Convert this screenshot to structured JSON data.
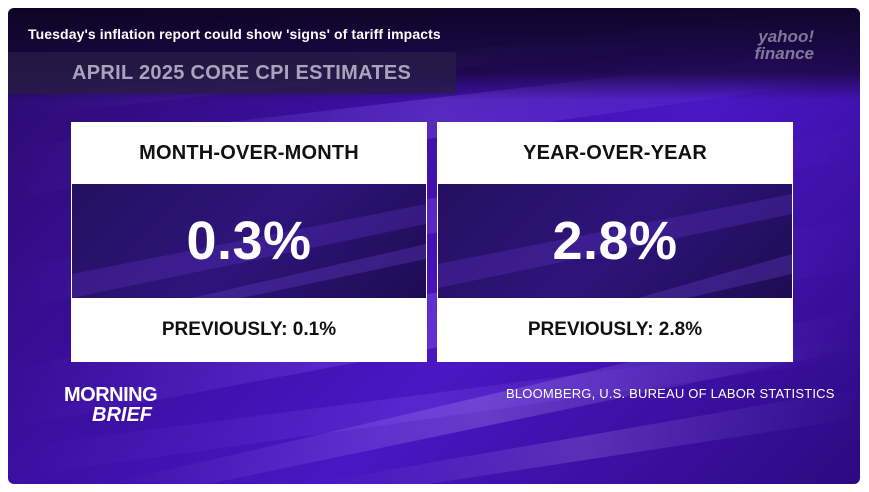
{
  "headline": "Tuesday's inflation report could show 'signs' of tariff impacts",
  "subtitle": "APRIL 2025 CORE CPI ESTIMATES",
  "logo": {
    "line1": "yahoo!",
    "line2": "finance"
  },
  "cards": [
    {
      "title": "MONTH-OVER-MONTH",
      "value": "0.3%",
      "previous": "PREVIOUSLY: 0.1%"
    },
    {
      "title": "YEAR-OVER-YEAR",
      "value": "2.8%",
      "previous": "PREVIOUSLY: 2.8%"
    }
  ],
  "brand": {
    "line1": "MORNING",
    "line2": "BRIEF"
  },
  "source": "BLOOMBERG, U.S. BUREAU OF LABOR STATISTICS",
  "colors": {
    "background": "#3b0fa0",
    "card": "#ffffff",
    "value_panel": "#241060",
    "text_dark": "#111111",
    "text_light": "#ffffff"
  }
}
